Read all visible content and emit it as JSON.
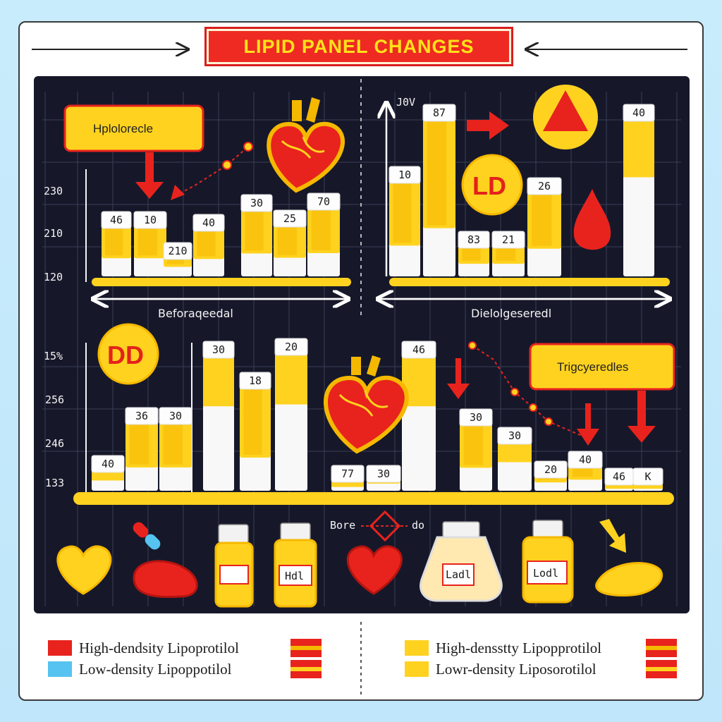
{
  "title": "LIPID PANEL CHANGES",
  "colors": {
    "panel": "#16182a",
    "yellow": "#ffd21f",
    "yellow_dark": "#f5b800",
    "red": "#e8231d",
    "white_bar": "#f8f8f8",
    "blue": "#56c3f0"
  },
  "chart_data": [
    {
      "type": "bar",
      "panel": "top-left",
      "callout": "Hplolorecle",
      "xlabel": "Beforaqeedal",
      "y_ticks": [
        "230",
        "210",
        "120"
      ],
      "bar_labels": [
        "46",
        "10",
        "210",
        "40",
        "30",
        "25",
        "70"
      ],
      "values": [
        46,
        10,
        210,
        40,
        30,
        25,
        70
      ]
    },
    {
      "type": "bar",
      "panel": "top-right",
      "y_ticks": [
        "J0V"
      ],
      "badge": "LD",
      "xlabel": "Dielolgeseredl",
      "bar_labels": [
        "10",
        "87",
        "83",
        "21",
        "26",
        "40"
      ],
      "values": [
        10,
        87,
        83,
        21,
        26,
        40
      ]
    },
    {
      "type": "bar",
      "panel": "bottom",
      "badge": "DD",
      "callout": "Trigcyeredles",
      "y_ticks": [
        "15%",
        "256",
        "246",
        "133"
      ],
      "bar_labels": [
        "40",
        "36",
        "30",
        "30",
        "18",
        "20",
        "77",
        "30",
        "46",
        "30",
        "30",
        "20",
        "40",
        "46",
        "K"
      ],
      "values": [
        40,
        36,
        30,
        30,
        18,
        20,
        77,
        30,
        46,
        30,
        30,
        20,
        40,
        46,
        null
      ]
    }
  ],
  "bottles": [
    "Hdl",
    "Ladl",
    "Lodl"
  ],
  "caption": "Bore",
  "caption_end": "do",
  "legend": {
    "left": [
      "High-dendsity Lipoprotilol",
      "Low-density Lipoppotilol"
    ],
    "right": [
      "High-densstty Lipopprotilol",
      "Lowr-density Liposorotilol"
    ]
  }
}
